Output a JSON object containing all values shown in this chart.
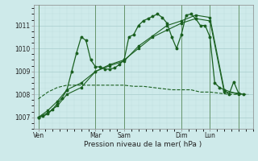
{
  "bg_color": "#ceeaea",
  "grid_color_major": "#a8cccc",
  "grid_color_minor": "#bedddd",
  "line_color": "#1a6020",
  "title": "Pression niveau de la mer( hPa )",
  "ylabel_ticks": [
    1007,
    1008,
    1009,
    1010,
    1011
  ],
  "x_tick_labels": [
    "Ven",
    "Mar",
    "Sam",
    "Dim",
    "Lun"
  ],
  "x_tick_pos": [
    0,
    24,
    36,
    60,
    72
  ],
  "xlim": [
    -2,
    90
  ],
  "ylim": [
    1006.5,
    1011.9
  ],
  "series1_x": [
    0,
    2,
    4,
    6,
    8,
    10,
    12,
    14,
    16,
    18,
    20,
    22,
    24,
    26,
    28,
    30,
    32,
    34,
    36,
    38,
    40,
    42,
    44,
    46,
    48,
    50,
    52,
    54,
    56,
    58,
    60,
    62,
    64,
    66,
    68,
    70,
    72,
    74,
    76,
    78,
    80,
    82,
    84,
    86
  ],
  "series1_y": [
    1007.0,
    1007.05,
    1007.15,
    1007.35,
    1007.6,
    1007.85,
    1008.2,
    1009.0,
    1009.8,
    1010.5,
    1010.35,
    1009.5,
    1009.2,
    1009.2,
    1009.1,
    1009.1,
    1009.15,
    1009.3,
    1009.5,
    1010.5,
    1010.6,
    1011.0,
    1011.2,
    1011.3,
    1011.4,
    1011.5,
    1011.35,
    1011.1,
    1010.5,
    1010.0,
    1010.6,
    1011.45,
    1011.5,
    1011.3,
    1011.0,
    1011.0,
    1010.5,
    1008.5,
    1008.3,
    1008.2,
    1008.0,
    1008.55,
    1008.05,
    1008.0
  ],
  "series2_x": [
    0,
    4,
    8,
    12,
    16,
    20,
    24,
    28,
    32,
    36,
    40,
    44,
    48,
    52,
    56,
    60,
    64,
    68,
    72,
    76,
    80,
    84,
    88
  ],
  "series2_y": [
    1007.8,
    1008.1,
    1008.3,
    1008.4,
    1008.4,
    1008.4,
    1008.4,
    1008.4,
    1008.4,
    1008.4,
    1008.35,
    1008.35,
    1008.3,
    1008.25,
    1008.2,
    1008.2,
    1008.2,
    1008.1,
    1008.1,
    1008.05,
    1008.0,
    1008.0,
    1008.0
  ],
  "series3_x": [
    0,
    4,
    8,
    12,
    18,
    24,
    30,
    36,
    42,
    48,
    54,
    60,
    66,
    72,
    78,
    84
  ],
  "series3_y": [
    1007.0,
    1007.3,
    1007.7,
    1008.2,
    1008.5,
    1009.0,
    1009.3,
    1009.5,
    1010.0,
    1010.5,
    1010.8,
    1011.1,
    1011.3,
    1011.2,
    1008.1,
    1008.05
  ],
  "series4_x": [
    0,
    4,
    8,
    12,
    18,
    24,
    30,
    36,
    42,
    48,
    54,
    60,
    66,
    72,
    78,
    84
  ],
  "series4_y": [
    1007.0,
    1007.2,
    1007.5,
    1008.0,
    1008.3,
    1009.0,
    1009.25,
    1009.45,
    1010.1,
    1010.55,
    1011.0,
    1011.2,
    1011.45,
    1011.35,
    1008.2,
    1008.0
  ],
  "vlines": [
    0,
    24,
    36,
    60,
    72,
    84
  ],
  "vline_color": "#5a8a5a"
}
